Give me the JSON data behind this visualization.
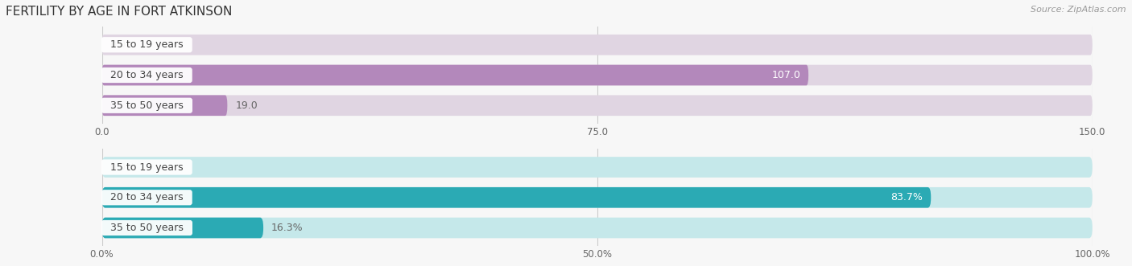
{
  "title": "FERTILITY BY AGE IN FORT ATKINSON",
  "source": "Source: ZipAtlas.com",
  "top_chart": {
    "categories": [
      "15 to 19 years",
      "20 to 34 years",
      "35 to 50 years"
    ],
    "values": [
      0.0,
      107.0,
      19.0
    ],
    "xmax": 150.0,
    "xticks": [
      0.0,
      75.0,
      150.0
    ],
    "xtick_labels": [
      "0.0",
      "75.0",
      "150.0"
    ],
    "bar_color_main": "#b388bb",
    "bar_bg_color": "#e0d5e2"
  },
  "bottom_chart": {
    "categories": [
      "15 to 19 years",
      "20 to 34 years",
      "35 to 50 years"
    ],
    "values": [
      0.0,
      83.7,
      16.3
    ],
    "xmax": 100.0,
    "xticks": [
      0.0,
      50.0,
      100.0
    ],
    "xtick_labels": [
      "0.0%",
      "50.0%",
      "100.0%"
    ],
    "bar_color_main": "#2baab4",
    "bar_bg_color": "#c5e8ea"
  },
  "label_fontsize": 9,
  "tick_fontsize": 8.5,
  "title_fontsize": 11,
  "source_fontsize": 8,
  "bar_height": 0.68,
  "label_color_inside": "#ffffff",
  "label_color_outside": "#666666",
  "background_color": "#f7f7f7",
  "grid_color": "#cccccc",
  "cat_label_color": "#444444",
  "cat_label_bg": "#ffffff"
}
